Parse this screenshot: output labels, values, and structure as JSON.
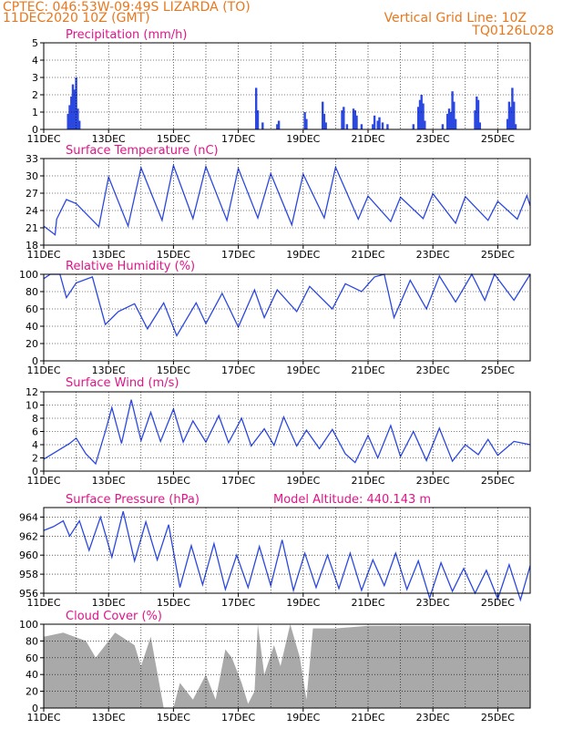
{
  "header": {
    "source_line": "CPTEC:   046:53W-09:49S   LIZARDA (TO)",
    "date_line": "11DEC2020  10Z (GMT)",
    "grid_note": "Vertical Grid Line: 10Z",
    "code": "TQ0126L028"
  },
  "colors": {
    "header_text": "#e8781e",
    "panel_title": "#e0158a",
    "line": "#2b48e0",
    "cloud_fill": "#a9a9a9",
    "grid": "#000000"
  },
  "x_axis": {
    "tick_labels": [
      "11DEC",
      "13DEC",
      "15DEC",
      "17DEC",
      "19DEC",
      "21DEC",
      "23DEC",
      "25DEC"
    ],
    "range_days": [
      0,
      15
    ]
  },
  "chart_data": [
    {
      "type": "bar",
      "title": "Precipitation (mm/h)",
      "ylim": [
        0,
        5
      ],
      "yticks": [
        0,
        1,
        2,
        3,
        4,
        5
      ],
      "grid": true,
      "bars": [
        [
          0.75,
          0.9
        ],
        [
          0.8,
          1.4
        ],
        [
          0.85,
          1.9
        ],
        [
          0.9,
          2.6
        ],
        [
          0.95,
          2.3
        ],
        [
          1.0,
          3.0
        ],
        [
          1.05,
          1.2
        ],
        [
          1.1,
          0.5
        ],
        [
          6.55,
          2.4
        ],
        [
          6.6,
          1.1
        ],
        [
          6.75,
          0.4
        ],
        [
          7.2,
          0.3
        ],
        [
          7.25,
          0.5
        ],
        [
          8.05,
          1.0
        ],
        [
          8.1,
          0.6
        ],
        [
          8.6,
          1.6
        ],
        [
          8.65,
          0.9
        ],
        [
          8.7,
          0.4
        ],
        [
          9.2,
          1.1
        ],
        [
          9.25,
          1.3
        ],
        [
          9.35,
          0.3
        ],
        [
          9.55,
          1.2
        ],
        [
          9.6,
          1.1
        ],
        [
          9.65,
          0.8
        ],
        [
          9.8,
          0.3
        ],
        [
          10.15,
          0.3
        ],
        [
          10.2,
          0.8
        ],
        [
          10.3,
          0.5
        ],
        [
          10.35,
          0.7
        ],
        [
          10.45,
          0.4
        ],
        [
          10.6,
          0.3
        ],
        [
          11.4,
          0.3
        ],
        [
          11.55,
          1.3
        ],
        [
          11.6,
          1.7
        ],
        [
          11.65,
          2.0
        ],
        [
          11.7,
          1.5
        ],
        [
          11.75,
          0.5
        ],
        [
          12.3,
          0.3
        ],
        [
          12.45,
          0.9
        ],
        [
          12.5,
          1.2
        ],
        [
          12.55,
          1.0
        ],
        [
          12.6,
          2.2
        ],
        [
          12.65,
          1.6
        ],
        [
          12.7,
          0.6
        ],
        [
          13.3,
          1.1
        ],
        [
          13.35,
          1.9
        ],
        [
          13.4,
          1.7
        ],
        [
          13.45,
          0.4
        ],
        [
          14.3,
          0.6
        ],
        [
          14.35,
          1.6
        ],
        [
          14.4,
          1.3
        ],
        [
          14.45,
          2.4
        ],
        [
          14.5,
          1.6
        ],
        [
          14.55,
          0.3
        ]
      ]
    },
    {
      "type": "line",
      "title": "Surface Temperature (nC)",
      "ylim": [
        18,
        33
      ],
      "yticks": [
        18,
        21,
        24,
        27,
        30,
        33
      ],
      "grid": true,
      "x": [
        0,
        0.35,
        0.4,
        0.7,
        1.0,
        1.7,
        2.0,
        2.6,
        3.0,
        3.65,
        4.0,
        4.6,
        5.0,
        5.65,
        6.0,
        6.6,
        7.0,
        7.65,
        8.0,
        8.65,
        9.0,
        9.7,
        10.0,
        10.7,
        11.0,
        11.7,
        12.0,
        12.7,
        13.0,
        13.7,
        14.0,
        14.6,
        14.9,
        15.0
      ],
      "y": [
        21.3,
        19.8,
        22.5,
        25.9,
        25.2,
        21.2,
        29.8,
        21.3,
        31.4,
        22.3,
        31.8,
        22.6,
        31.6,
        22.3,
        31.3,
        22.7,
        30.4,
        21.5,
        30.3,
        22.7,
        31.5,
        22.5,
        26.5,
        22.1,
        26.3,
        22.6,
        26.9,
        21.8,
        26.4,
        22.3,
        25.6,
        22.5,
        26.6,
        24.8
      ]
    },
    {
      "type": "line",
      "title": "Relative Humidity (%)",
      "ylim": [
        0,
        100
      ],
      "yticks": [
        0,
        20,
        40,
        60,
        80,
        100
      ],
      "grid": true,
      "x": [
        0,
        0.2,
        0.5,
        0.7,
        1.0,
        1.5,
        1.9,
        2.3,
        2.8,
        3.2,
        3.7,
        4.1,
        4.7,
        5.0,
        5.5,
        6.0,
        6.5,
        6.8,
        7.2,
        7.8,
        8.2,
        8.9,
        9.3,
        9.8,
        10.2,
        10.5,
        10.8,
        11.3,
        11.8,
        12.2,
        12.7,
        13.2,
        13.6,
        13.9,
        14.5,
        15.0
      ],
      "y": [
        95,
        100,
        100,
        73,
        90,
        97,
        42,
        57,
        66,
        37,
        67,
        29,
        67,
        43,
        78,
        39,
        82,
        50,
        82,
        57,
        86,
        60,
        89,
        80,
        97,
        100,
        50,
        93,
        60,
        98,
        68,
        100,
        70,
        100,
        70,
        100
      ]
    },
    {
      "type": "line",
      "title": "Surface Wind (m/s)",
      "ylim": [
        0,
        12
      ],
      "yticks": [
        0,
        2,
        4,
        6,
        8,
        10,
        12
      ],
      "grid": true,
      "x": [
        0,
        0.4,
        0.8,
        1.0,
        1.3,
        1.6,
        1.9,
        2.1,
        2.4,
        2.7,
        3.0,
        3.3,
        3.6,
        4.0,
        4.3,
        4.6,
        5.0,
        5.4,
        5.7,
        6.1,
        6.4,
        6.8,
        7.1,
        7.4,
        7.8,
        8.1,
        8.5,
        8.9,
        9.3,
        9.6,
        10.0,
        10.3,
        10.7,
        11.0,
        11.4,
        11.8,
        12.2,
        12.6,
        13.0,
        13.4,
        13.7,
        14.0,
        14.5,
        15.0
      ],
      "y": [
        1.8,
        3.0,
        4.2,
        5.0,
        2.6,
        1.1,
        6.0,
        9.6,
        4.2,
        10.8,
        4.6,
        8.9,
        4.5,
        9.4,
        4.4,
        7.6,
        4.4,
        8.4,
        4.3,
        8.0,
        3.8,
        6.4,
        3.9,
        8.2,
        3.8,
        6.2,
        3.4,
        6.3,
        2.6,
        1.3,
        5.4,
        2.0,
        6.9,
        2.2,
        6.0,
        1.6,
        6.5,
        1.5,
        4.0,
        2.5,
        4.8,
        2.4,
        4.5,
        4.0
      ]
    },
    {
      "type": "line",
      "title": "Surface Pressure (hPa)",
      "annotation": "Model Altitude: 440.143 m",
      "ylim": [
        956,
        965
      ],
      "yticks": [
        956,
        958,
        960,
        962,
        964
      ],
      "grid": true,
      "x": [
        0,
        0.3,
        0.6,
        0.8,
        1.1,
        1.4,
        1.75,
        2.1,
        2.45,
        2.8,
        3.15,
        3.5,
        3.85,
        4.2,
        4.55,
        4.9,
        5.25,
        5.6,
        5.95,
        6.3,
        6.65,
        7.0,
        7.35,
        7.7,
        8.05,
        8.4,
        8.75,
        9.1,
        9.45,
        9.8,
        10.15,
        10.5,
        10.85,
        11.2,
        11.55,
        11.9,
        12.25,
        12.6,
        12.95,
        13.3,
        13.65,
        14.0,
        14.35,
        14.7,
        15.0
      ],
      "y": [
        962.6,
        963.0,
        963.6,
        962.0,
        963.6,
        960.5,
        964.0,
        959.8,
        964.6,
        959.4,
        963.5,
        959.5,
        963.2,
        956.6,
        961.0,
        956.9,
        961.2,
        956.4,
        960.0,
        956.6,
        960.9,
        956.8,
        961.6,
        956.3,
        960.2,
        956.6,
        960.0,
        956.5,
        960.2,
        956.3,
        959.5,
        956.8,
        960.2,
        956.4,
        959.4,
        955.5,
        959.2,
        956.2,
        958.6,
        956.0,
        958.4,
        955.4,
        959.0,
        955.3,
        958.9
      ]
    },
    {
      "type": "area",
      "title": "Cloud Cover (%)",
      "ylim": [
        0,
        100
      ],
      "yticks": [
        0,
        20,
        40,
        60,
        80,
        100
      ],
      "grid": true,
      "x": [
        0,
        0.6,
        1.3,
        1.6,
        2.2,
        2.8,
        3.0,
        3.3,
        3.7,
        4.0,
        4.2,
        4.6,
        5.0,
        5.3,
        5.6,
        5.8,
        6.1,
        6.3,
        6.5,
        6.6,
        6.8,
        7.1,
        7.3,
        7.6,
        7.9,
        8.1,
        8.3,
        9.0,
        10.0,
        12.0,
        14.0,
        15.0
      ],
      "y": [
        85,
        90,
        80,
        60,
        90,
        75,
        50,
        85,
        0,
        0,
        30,
        10,
        40,
        10,
        70,
        60,
        30,
        5,
        20,
        100,
        40,
        75,
        50,
        100,
        60,
        10,
        95,
        95,
        98,
        98,
        98,
        98
      ]
    }
  ]
}
